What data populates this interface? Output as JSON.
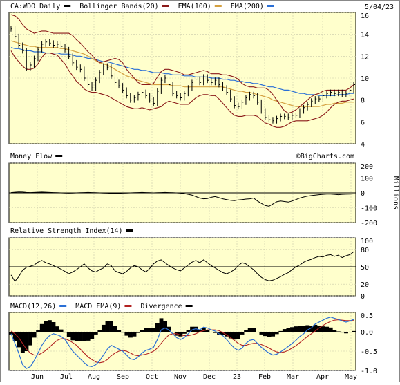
{
  "date": "5/04/23",
  "watermark": "©BigCharts.com",
  "colors": {
    "background": "#ffffcc",
    "price": "#000000",
    "bollinger": "#8b1a1a",
    "ema100": "#d4a040",
    "ema200": "#2a6fd6",
    "macd": "#2a6fd6",
    "macd_ema": "#b22222",
    "divergence": "#000000"
  },
  "chart_data": [
    {
      "type": "line",
      "legend": [
        {
          "label": "CA:WDO Daily",
          "color": "#000000"
        },
        {
          "label": "Bollinger Bands(20)",
          "color": "#8b1a1a"
        },
        {
          "label": "EMA(100)",
          "color": "#d4a040"
        },
        {
          "label": "EMA(200)",
          "color": "#2a6fd6"
        }
      ],
      "ylim": [
        4,
        16
      ],
      "yticks": [
        "4",
        "6",
        "8",
        "10",
        "12",
        "14",
        "16"
      ],
      "xticks": [
        "Jun",
        "Jul",
        "Aug",
        "Sep",
        "Oct",
        "Nov",
        "Dec",
        "23",
        "Feb",
        "Mar",
        "Apr",
        "May"
      ],
      "series": [
        {
          "name": "CA:WDO Daily",
          "values": [
            14.5,
            13.8,
            13.0,
            12.5,
            10.9,
            11.2,
            11.8,
            12.6,
            13.1,
            13.3,
            13.2,
            13.0,
            13.1,
            12.9,
            12.6,
            12.0,
            11.4,
            11.0,
            10.8,
            10.0,
            9.4,
            9.1,
            9.8,
            10.5,
            11.1,
            11.0,
            10.2,
            9.6,
            9.3,
            8.9,
            8.4,
            8.0,
            8.2,
            8.5,
            8.7,
            8.4,
            8.0,
            7.7,
            8.8,
            9.8,
            10.0,
            9.4,
            8.6,
            8.4,
            8.2,
            8.6,
            9.1,
            9.6,
            9.9,
            9.6,
            10.1,
            9.8,
            9.6,
            9.8,
            9.4,
            9.1,
            8.7,
            8.1,
            7.5,
            7.4,
            7.8,
            8.2,
            8.5,
            8.4,
            7.8,
            7.0,
            6.4,
            6.2,
            6.1,
            6.3,
            6.5,
            6.5,
            6.4,
            6.6,
            6.6,
            7.0,
            7.3,
            7.6,
            7.9,
            8.1,
            8.1,
            8.4,
            8.6,
            8.7,
            8.6,
            8.7,
            8.5,
            8.6,
            8.9,
            9.4
          ]
        },
        {
          "name": "Bollinger Upper",
          "values": [
            15.8,
            15.7,
            15.4,
            14.9,
            14.5,
            14.3,
            14.1,
            14.2,
            14.3,
            14.3,
            14.2,
            14.1,
            14.1,
            14.1,
            14.1,
            14.1,
            13.9,
            13.5,
            13.2,
            12.8,
            12.4,
            12.1,
            11.7,
            11.4,
            11.5,
            11.6,
            11.7,
            11.8,
            11.7,
            11.4,
            10.8,
            10.4,
            10.0,
            9.6,
            9.4,
            9.4,
            9.4,
            9.5,
            10.1,
            10.6,
            10.8,
            10.8,
            10.7,
            10.6,
            10.5,
            10.3,
            10.3,
            10.4,
            10.5,
            10.6,
            10.7,
            10.6,
            10.4,
            10.4,
            10.4,
            10.3,
            10.3,
            10.2,
            10.1,
            9.9,
            9.5,
            9.3,
            9.2,
            9.2,
            9.1,
            9.1,
            9.1,
            8.9,
            8.5,
            8.0,
            7.5,
            7.0,
            6.8,
            6.9,
            7.1,
            7.4,
            7.7,
            8.0,
            8.3,
            8.5,
            8.6,
            8.8,
            8.9,
            8.9,
            8.9,
            8.9,
            8.9,
            8.9,
            9.1,
            9.4
          ]
        },
        {
          "name": "Bollinger Lower",
          "values": [
            12.5,
            11.9,
            11.5,
            11.1,
            10.8,
            10.8,
            10.9,
            11.3,
            11.9,
            12.3,
            12.3,
            12.2,
            12.1,
            11.7,
            11.3,
            10.7,
            10.2,
            9.7,
            9.4,
            9.0,
            8.8,
            8.7,
            8.7,
            8.6,
            8.5,
            8.4,
            8.2,
            8.0,
            7.8,
            7.6,
            7.4,
            7.3,
            7.2,
            7.2,
            7.3,
            7.2,
            7.1,
            7.2,
            7.3,
            7.4,
            7.7,
            7.9,
            7.8,
            7.7,
            7.6,
            7.6,
            7.6,
            7.9,
            8.2,
            8.4,
            8.5,
            8.5,
            8.4,
            8.4,
            8.1,
            7.7,
            7.3,
            6.9,
            6.6,
            6.5,
            6.5,
            6.6,
            6.6,
            6.6,
            6.5,
            6.2,
            5.9,
            5.8,
            5.6,
            5.5,
            5.5,
            5.6,
            5.8,
            6.0,
            6.1,
            6.1,
            6.1,
            6.1,
            6.2,
            6.3,
            6.4,
            6.6,
            6.9,
            7.3,
            7.6,
            7.8,
            7.9,
            7.9,
            8.0,
            8.1
          ]
        },
        {
          "name": "EMA(100)",
          "values": [
            13.4,
            13.3,
            13.2,
            13.1,
            13.0,
            12.9,
            12.9,
            12.8,
            12.8,
            12.8,
            12.8,
            12.8,
            12.8,
            12.7,
            12.7,
            12.6,
            12.5,
            12.4,
            12.3,
            12.2,
            12.0,
            11.8,
            11.6,
            11.4,
            11.3,
            11.2,
            11.0,
            10.8,
            10.6,
            10.4,
            10.2,
            10.1,
            9.9,
            9.8,
            9.7,
            9.6,
            9.5,
            9.4,
            9.4,
            9.4,
            9.4,
            9.4,
            9.3,
            9.3,
            9.3,
            9.2,
            9.2,
            9.2,
            9.2,
            9.2,
            9.2,
            9.2,
            9.2,
            9.2,
            9.2,
            9.2,
            9.1,
            9.0,
            8.9,
            8.8,
            8.8,
            8.7,
            8.7,
            8.6,
            8.5,
            8.4,
            8.3,
            8.2,
            8.0,
            7.9,
            7.8,
            7.7,
            7.6,
            7.5,
            7.4,
            7.4,
            7.4,
            7.4,
            7.4,
            7.4,
            7.4,
            7.5,
            7.6,
            7.6,
            7.7,
            7.7,
            7.7,
            7.8,
            7.8,
            7.8
          ]
        },
        {
          "name": "EMA(200)",
          "values": [
            12.8,
            12.7,
            12.7,
            12.6,
            12.5,
            12.5,
            12.4,
            12.4,
            12.4,
            12.3,
            12.3,
            12.3,
            12.3,
            12.2,
            12.2,
            12.2,
            12.1,
            12.0,
            12.0,
            11.9,
            11.8,
            11.8,
            11.7,
            11.6,
            11.5,
            11.5,
            11.4,
            11.3,
            11.2,
            11.1,
            11.0,
            10.9,
            10.8,
            10.8,
            10.7,
            10.7,
            10.6,
            10.5,
            10.5,
            10.5,
            10.4,
            10.4,
            10.3,
            10.3,
            10.3,
            10.2,
            10.2,
            10.2,
            10.1,
            10.1,
            10.1,
            10.1,
            10.0,
            10.0,
            10.0,
            9.9,
            9.9,
            9.8,
            9.8,
            9.7,
            9.7,
            9.6,
            9.6,
            9.5,
            9.5,
            9.4,
            9.3,
            9.2,
            9.2,
            9.1,
            9.0,
            8.9,
            8.9,
            8.8,
            8.7,
            8.6,
            8.6,
            8.5,
            8.5,
            8.5,
            8.4,
            8.4,
            8.4,
            8.4,
            8.4,
            8.5,
            8.5,
            8.5,
            8.6,
            8.6
          ]
        }
      ]
    },
    {
      "type": "line",
      "legend": [
        {
          "label": "Money Flow",
          "color": "#000000"
        }
      ],
      "ylim": [
        -200,
        200
      ],
      "yticks": [
        "200",
        "100",
        "0",
        "-100",
        "-200"
      ],
      "ylabel": "Millions",
      "series": [
        {
          "name": "Money Flow",
          "values": [
            2,
            4,
            6,
            5,
            3,
            2,
            3,
            4,
            5,
            4,
            3,
            2,
            1,
            0,
            -1,
            -2,
            -1,
            0,
            1,
            2,
            3,
            2,
            1,
            0,
            -1,
            -2,
            -3,
            -4,
            -3,
            -2,
            -1,
            0,
            1,
            2,
            3,
            2,
            1,
            0,
            1,
            2,
            3,
            2,
            1,
            0,
            -2,
            -5,
            -10,
            -15,
            -25,
            -35,
            -40,
            -38,
            -30,
            -25,
            -32,
            -40,
            -45,
            -50,
            -52,
            -48,
            -45,
            -42,
            -40,
            -35,
            -55,
            -70,
            -85,
            -90,
            -75,
            -60,
            -55,
            -58,
            -62,
            -55,
            -45,
            -35,
            -28,
            -22,
            -18,
            -15,
            -12,
            -10,
            -8,
            -8,
            -10,
            -12,
            -10,
            -9,
            -8,
            -7
          ]
        }
      ]
    },
    {
      "type": "line",
      "legend": [
        {
          "label": "Relative Strength Index(14)",
          "color": "#000000"
        }
      ],
      "ylim": [
        0,
        100
      ],
      "yticks": [
        "100",
        "80",
        "50",
        "20",
        "0"
      ],
      "series": [
        {
          "name": "RSI",
          "values": [
            36,
            25,
            33,
            44,
            49,
            51,
            53,
            58,
            61,
            57,
            55,
            52,
            49,
            46,
            42,
            38,
            41,
            45,
            50,
            55,
            48,
            43,
            41,
            45,
            48,
            55,
            52,
            43,
            40,
            38,
            42,
            48,
            52,
            50,
            45,
            41,
            47,
            55,
            60,
            62,
            57,
            52,
            48,
            45,
            43,
            48,
            53,
            58,
            61,
            57,
            62,
            57,
            52,
            48,
            44,
            40,
            38,
            41,
            45,
            52,
            57,
            55,
            50,
            45,
            38,
            32,
            28,
            26,
            27,
            30,
            33,
            37,
            40,
            45,
            50,
            53,
            58,
            61,
            63,
            66,
            68,
            67,
            70,
            71,
            68,
            70,
            66,
            69,
            71,
            76
          ]
        }
      ]
    },
    {
      "type": "line",
      "legend": [
        {
          "label": "MACD(12,26)",
          "color": "#2a6fd6"
        },
        {
          "label": "MACD EMA(9)",
          "color": "#b22222"
        },
        {
          "label": "Divergence",
          "color": "#000000"
        }
      ],
      "ylim": [
        -1.0,
        0.5
      ],
      "yticks": [
        "0.5",
        "0.0",
        "-0.5",
        "-1.0"
      ],
      "series": [
        {
          "name": "MACD",
          "values": [
            -0.05,
            -0.3,
            -0.55,
            -0.85,
            -0.95,
            -0.9,
            -0.75,
            -0.55,
            -0.35,
            -0.2,
            -0.1,
            -0.05,
            -0.08,
            -0.12,
            -0.2,
            -0.35,
            -0.5,
            -0.6,
            -0.7,
            -0.8,
            -0.88,
            -0.9,
            -0.85,
            -0.75,
            -0.6,
            -0.45,
            -0.35,
            -0.4,
            -0.45,
            -0.5,
            -0.6,
            -0.7,
            -0.72,
            -0.65,
            -0.55,
            -0.48,
            -0.45,
            -0.4,
            -0.2,
            0.05,
            0.1,
            0.05,
            -0.05,
            -0.15,
            -0.2,
            -0.15,
            -0.05,
            0.05,
            0.08,
            0.05,
            0.12,
            0.1,
            0.05,
            0.02,
            -0.05,
            -0.1,
            -0.2,
            -0.32,
            -0.42,
            -0.48,
            -0.42,
            -0.3,
            -0.22,
            -0.2,
            -0.3,
            -0.4,
            -0.48,
            -0.55,
            -0.6,
            -0.58,
            -0.52,
            -0.45,
            -0.38,
            -0.3,
            -0.22,
            -0.12,
            -0.05,
            0.05,
            0.1,
            0.2,
            0.25,
            0.3,
            0.35,
            0.38,
            0.35,
            0.32,
            0.28,
            0.25,
            0.28,
            0.32
          ]
        },
        {
          "name": "MACD EMA(9)",
          "values": [
            0.02,
            -0.05,
            -0.15,
            -0.3,
            -0.45,
            -0.55,
            -0.6,
            -0.6,
            -0.55,
            -0.48,
            -0.4,
            -0.3,
            -0.22,
            -0.18,
            -0.18,
            -0.22,
            -0.28,
            -0.35,
            -0.45,
            -0.55,
            -0.65,
            -0.72,
            -0.78,
            -0.8,
            -0.78,
            -0.72,
            -0.62,
            -0.55,
            -0.5,
            -0.48,
            -0.5,
            -0.55,
            -0.6,
            -0.62,
            -0.6,
            -0.58,
            -0.55,
            -0.5,
            -0.42,
            -0.3,
            -0.18,
            -0.08,
            -0.05,
            -0.05,
            -0.08,
            -0.1,
            -0.1,
            -0.08,
            -0.05,
            0.0,
            0.03,
            0.05,
            0.05,
            0.05,
            0.03,
            -0.02,
            -0.08,
            -0.15,
            -0.22,
            -0.3,
            -0.35,
            -0.35,
            -0.32,
            -0.3,
            -0.3,
            -0.33,
            -0.37,
            -0.42,
            -0.48,
            -0.52,
            -0.54,
            -0.52,
            -0.48,
            -0.42,
            -0.36,
            -0.28,
            -0.2,
            -0.12,
            -0.05,
            0.02,
            0.1,
            0.16,
            0.22,
            0.27,
            0.3,
            0.31,
            0.3,
            0.29,
            0.29,
            0.3
          ]
        }
      ]
    }
  ]
}
